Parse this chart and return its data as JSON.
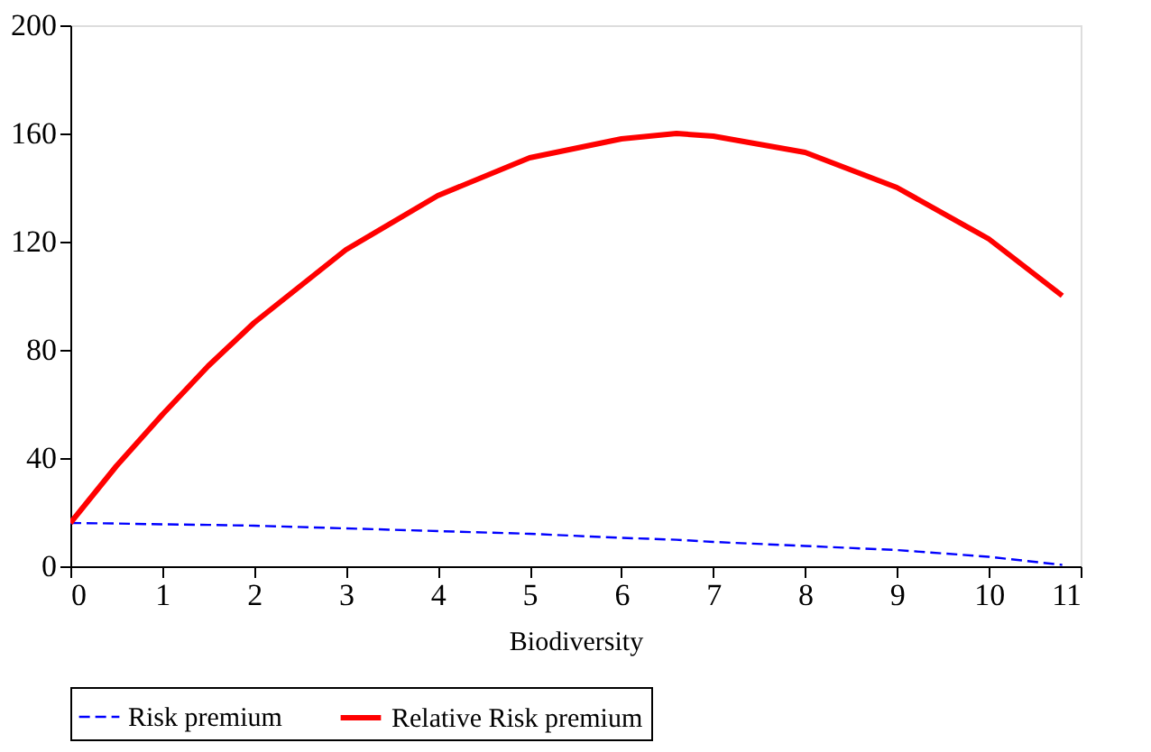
{
  "chart_data": {
    "type": "line",
    "xlabel": "Biodiversity",
    "x": [
      0,
      0.5,
      1,
      1.5,
      2,
      3,
      4,
      5,
      6,
      6.6,
      7,
      8,
      9,
      10,
      10.8
    ],
    "series": [
      {
        "name": "Risk premium",
        "color": "#0000ff",
        "line_style": "dashed",
        "values": [
          16,
          15.8,
          15.5,
          15.3,
          15,
          14,
          13,
          12,
          10.5,
          9.8,
          9,
          7.5,
          6,
          3.5,
          0.5
        ]
      },
      {
        "name": "Relative Risk premium",
        "color": "#ff0000",
        "line_style": "solid",
        "values": [
          16,
          37,
          56,
          74,
          90,
          117,
          137,
          151,
          158,
          160,
          159,
          153,
          140,
          121,
          100
        ]
      }
    ],
    "xlim": [
      0,
      11
    ],
    "xticks": [
      0,
      1,
      2,
      3,
      4,
      5,
      6,
      7,
      8,
      9,
      10,
      11
    ],
    "ylim": [
      0,
      200
    ],
    "yticks": [
      0,
      40,
      80,
      120,
      160,
      200
    ],
    "grid": false,
    "legend": "bottom",
    "marker": "none"
  }
}
